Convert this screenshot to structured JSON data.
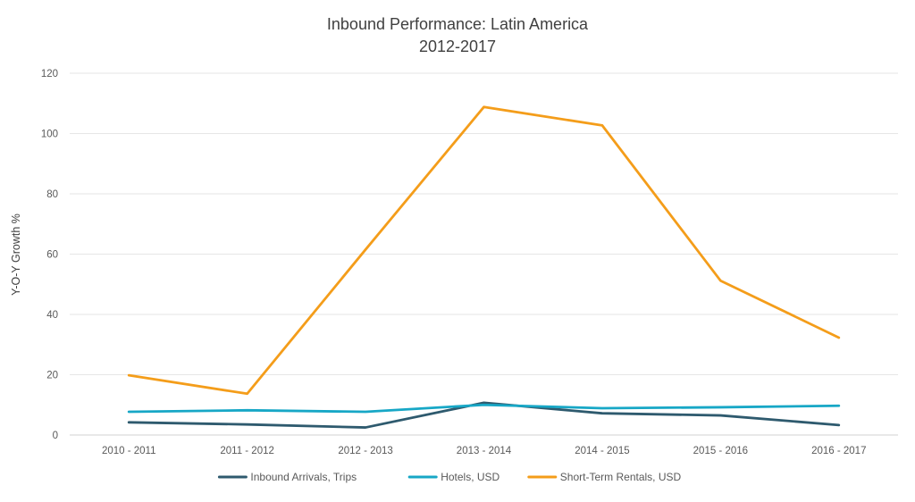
{
  "chart_data": {
    "type": "line",
    "title": "Inbound Performance: Latin America",
    "subtitle": "2012-2017",
    "xlabel": "",
    "ylabel": "Y-O-Y Growth %",
    "ylim": [
      0,
      120
    ],
    "yticks": [
      0,
      20,
      40,
      60,
      80,
      100,
      120
    ],
    "grid": true,
    "legend_position": "bottom",
    "categories": [
      "2010 - 2011",
      "2011 - 2012",
      "2012 - 2013",
      "2013 - 2014",
      "2014 - 2015",
      "2015 - 2016",
      "2016 - 2017"
    ],
    "series": [
      {
        "name": "Inbound Arrivals, Trips",
        "color": "#2e5a6e",
        "values": [
          4.2,
          3.5,
          2.5,
          10.7,
          7.2,
          6.5,
          3.3
        ]
      },
      {
        "name": "Hotels, USD",
        "color": "#17a7c6",
        "values": [
          7.7,
          8.2,
          7.7,
          10.0,
          8.9,
          9.2,
          9.7
        ]
      },
      {
        "name": "Short-Term Rentals, USD",
        "color": "#f49d1a",
        "values": [
          19.8,
          13.7,
          61.5,
          108.8,
          102.7,
          51.2,
          32.3
        ]
      }
    ]
  }
}
